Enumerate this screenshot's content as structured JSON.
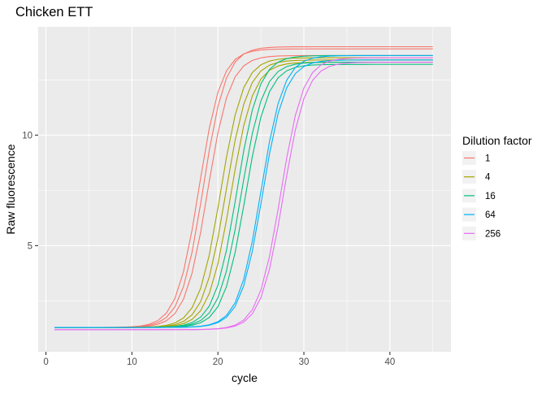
{
  "chart_data": {
    "type": "line",
    "title": "Chicken ETT",
    "xlabel": "cycle",
    "ylabel": "Raw fluorescence",
    "xlim": [
      -0.9,
      47.1
    ],
    "ylim": [
      0.2,
      14.9
    ],
    "x_ticks": [
      0,
      10,
      20,
      30,
      40
    ],
    "y_ticks": [
      5,
      10
    ],
    "x_tick_labels": [
      "0",
      "10",
      "20",
      "30",
      "40"
    ],
    "y_tick_labels": [
      "5",
      "10"
    ],
    "grid": true,
    "legend": {
      "title": "Dilution factor",
      "placement": "right",
      "entries": [
        {
          "label": "1",
          "color": "#F8766D"
        },
        {
          "label": "4",
          "color": "#A3A500"
        },
        {
          "label": "16",
          "color": "#00BF7D"
        },
        {
          "label": "64",
          "color": "#00B0F6"
        },
        {
          "label": "256",
          "color": "#E76BF3"
        }
      ]
    },
    "x": [
      1,
      45
    ],
    "series": [
      {
        "name": "1",
        "color": "#F8766D",
        "curves": [
          {
            "base": 1.3,
            "top": 13.9,
            "mid": 17.8,
            "slope": 1.3
          },
          {
            "base": 1.3,
            "top": 14.0,
            "mid": 18.3,
            "slope": 1.3
          },
          {
            "base": 1.3,
            "top": 13.6,
            "mid": 18.8,
            "slope": 1.3
          }
        ]
      },
      {
        "name": "4",
        "color": "#A3A500",
        "curves": [
          {
            "base": 1.3,
            "top": 13.5,
            "mid": 20.3,
            "slope": 1.3
          },
          {
            "base": 1.3,
            "top": 13.4,
            "mid": 20.9,
            "slope": 1.3
          },
          {
            "base": 1.3,
            "top": 13.3,
            "mid": 21.5,
            "slope": 1.3
          }
        ]
      },
      {
        "name": "16",
        "color": "#00BF7D",
        "curves": [
          {
            "base": 1.3,
            "top": 13.6,
            "mid": 22.2,
            "slope": 1.3
          },
          {
            "base": 1.3,
            "top": 13.3,
            "mid": 22.7,
            "slope": 1.3
          },
          {
            "base": 1.3,
            "top": 13.2,
            "mid": 23.2,
            "slope": 1.3
          }
        ]
      },
      {
        "name": "64",
        "color": "#00B0F6",
        "curves": [
          {
            "base": 1.3,
            "top": 13.6,
            "mid": 25.0,
            "slope": 1.3
          },
          {
            "base": 1.3,
            "top": 13.4,
            "mid": 25.2,
            "slope": 1.3
          }
        ]
      },
      {
        "name": "256",
        "color": "#E76BF3",
        "curves": [
          {
            "base": 1.2,
            "top": 13.5,
            "mid": 27.3,
            "slope": 1.3
          },
          {
            "base": 1.2,
            "top": 13.3,
            "mid": 27.6,
            "slope": 1.3
          }
        ]
      }
    ]
  }
}
